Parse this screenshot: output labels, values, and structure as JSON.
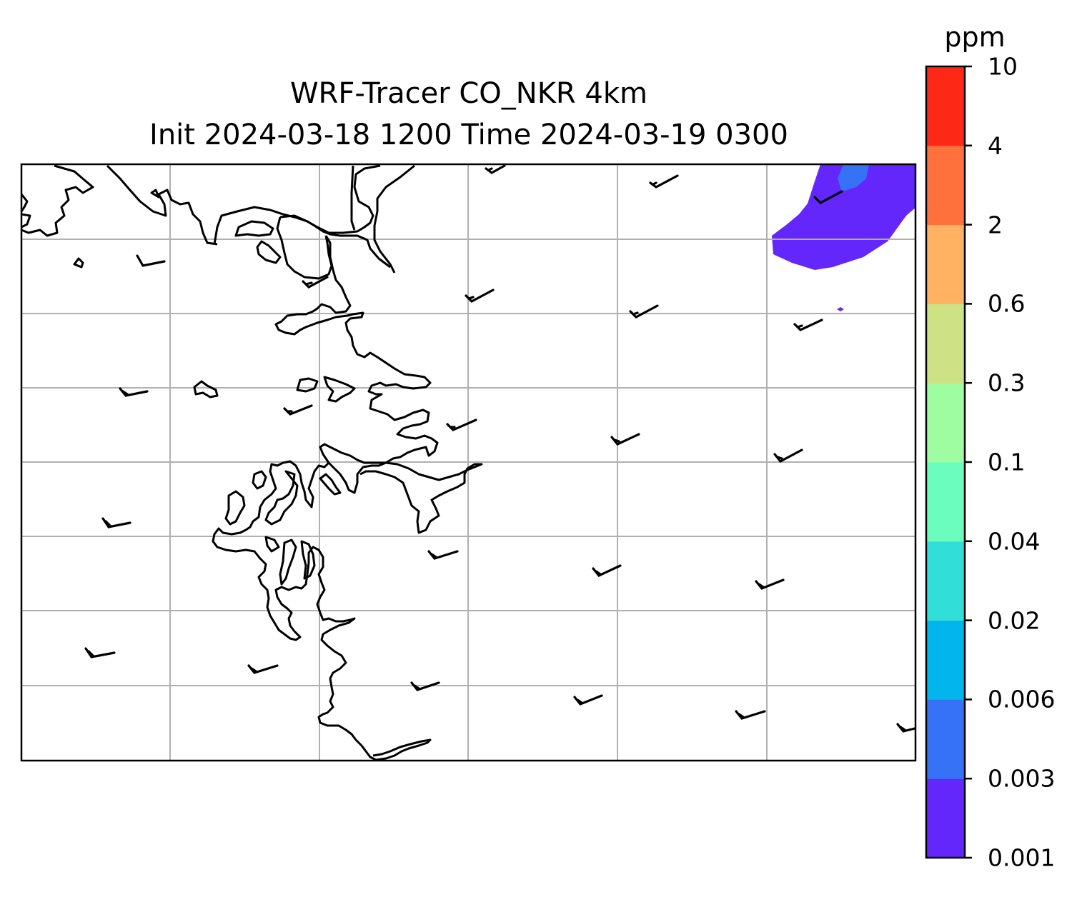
{
  "title": {
    "line1": "WRF-Tracer CO_NKR 4km",
    "line2": "Init 2024-03-18 1200 Time 2024-03-19 0300"
  },
  "colorbar": {
    "unit": "ppm",
    "ticks": [
      "0.001",
      "0.003",
      "0.006",
      "0.02",
      "0.04",
      "0.1",
      "0.3",
      "0.6",
      "2",
      "4",
      "10"
    ],
    "colors": [
      "#6427fb",
      "#3572f5",
      "#02b5ec",
      "#31dfd8",
      "#6bfdbe",
      "#9dfda0",
      "#cfe185",
      "#feb262",
      "#fe713c",
      "#fe2816"
    ]
  },
  "map": {
    "gridlines": true,
    "contour_level_shown": [
      "0.001",
      "0.003"
    ],
    "wind_barbs": true
  }
}
